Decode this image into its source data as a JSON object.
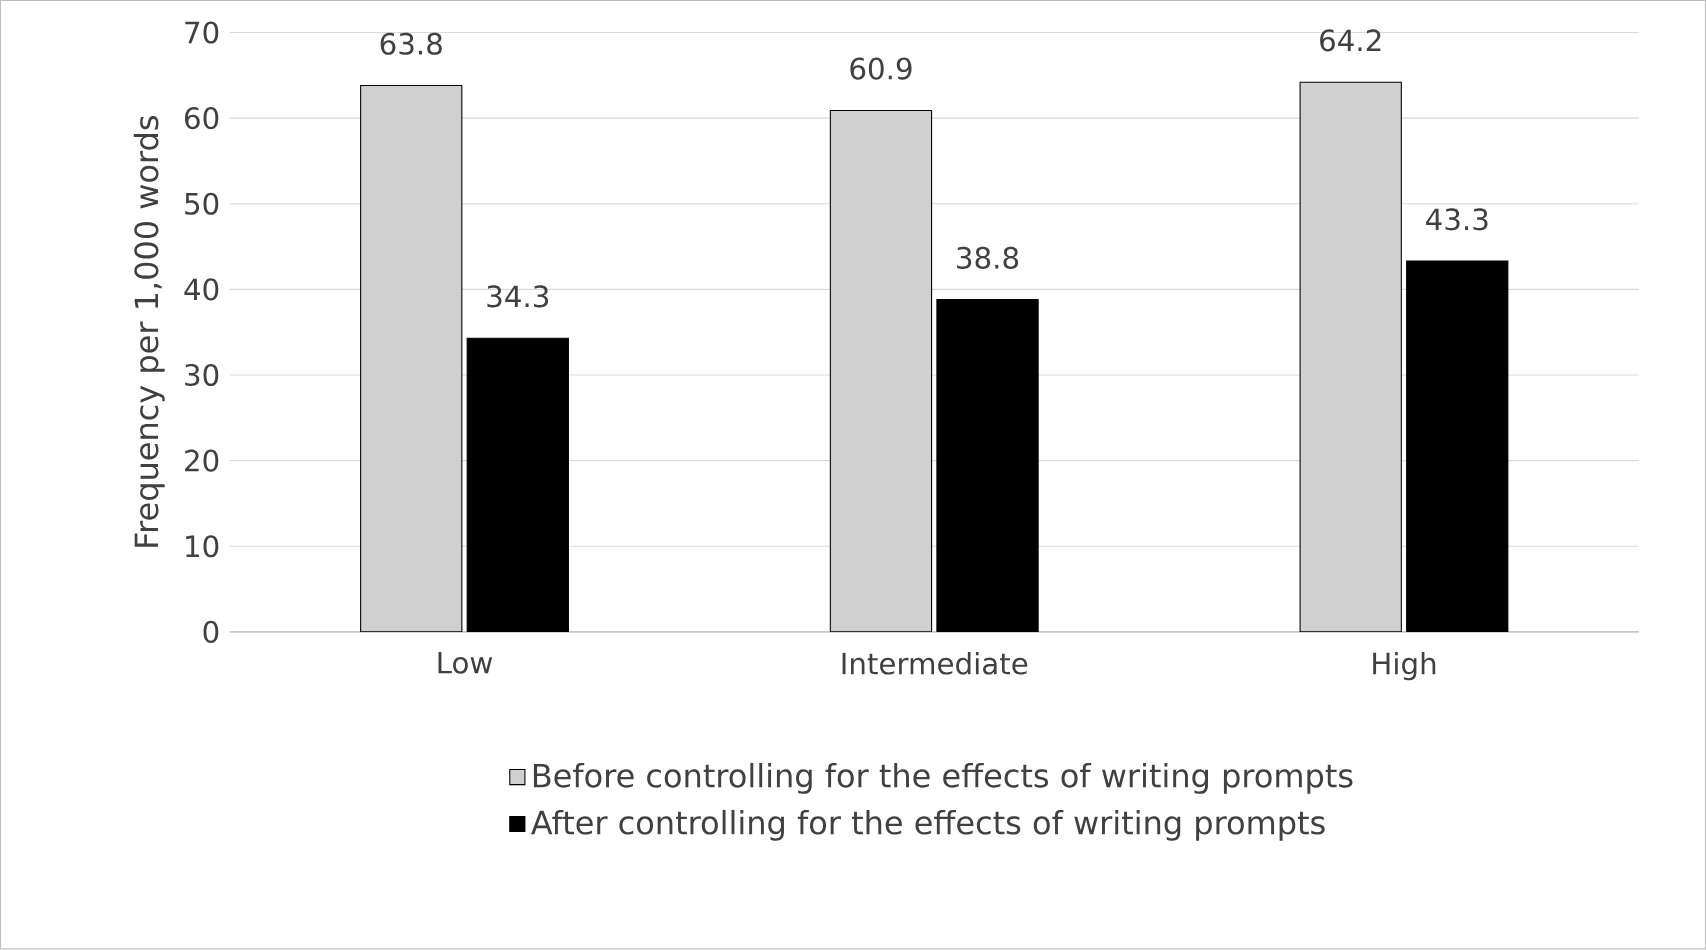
{
  "chart_data": {
    "type": "bar",
    "ylabel": "Frequency per 1,000 words",
    "categories": [
      "Low",
      "Intermediate",
      "High"
    ],
    "series": [
      {
        "name": "Before controlling for the effects of writing prompts",
        "color": "#d0d0d0",
        "values": [
          63.8,
          60.9,
          64.2
        ]
      },
      {
        "name": "After controlling for the effects of writing prompts",
        "color": "#000000",
        "values": [
          34.3,
          38.8,
          43.3
        ]
      }
    ],
    "ylim": [
      0,
      70
    ],
    "yticks": [
      0,
      10,
      20,
      30,
      40,
      50,
      60,
      70
    ],
    "grid": "y",
    "legend": "bottom",
    "data_labels": true
  }
}
